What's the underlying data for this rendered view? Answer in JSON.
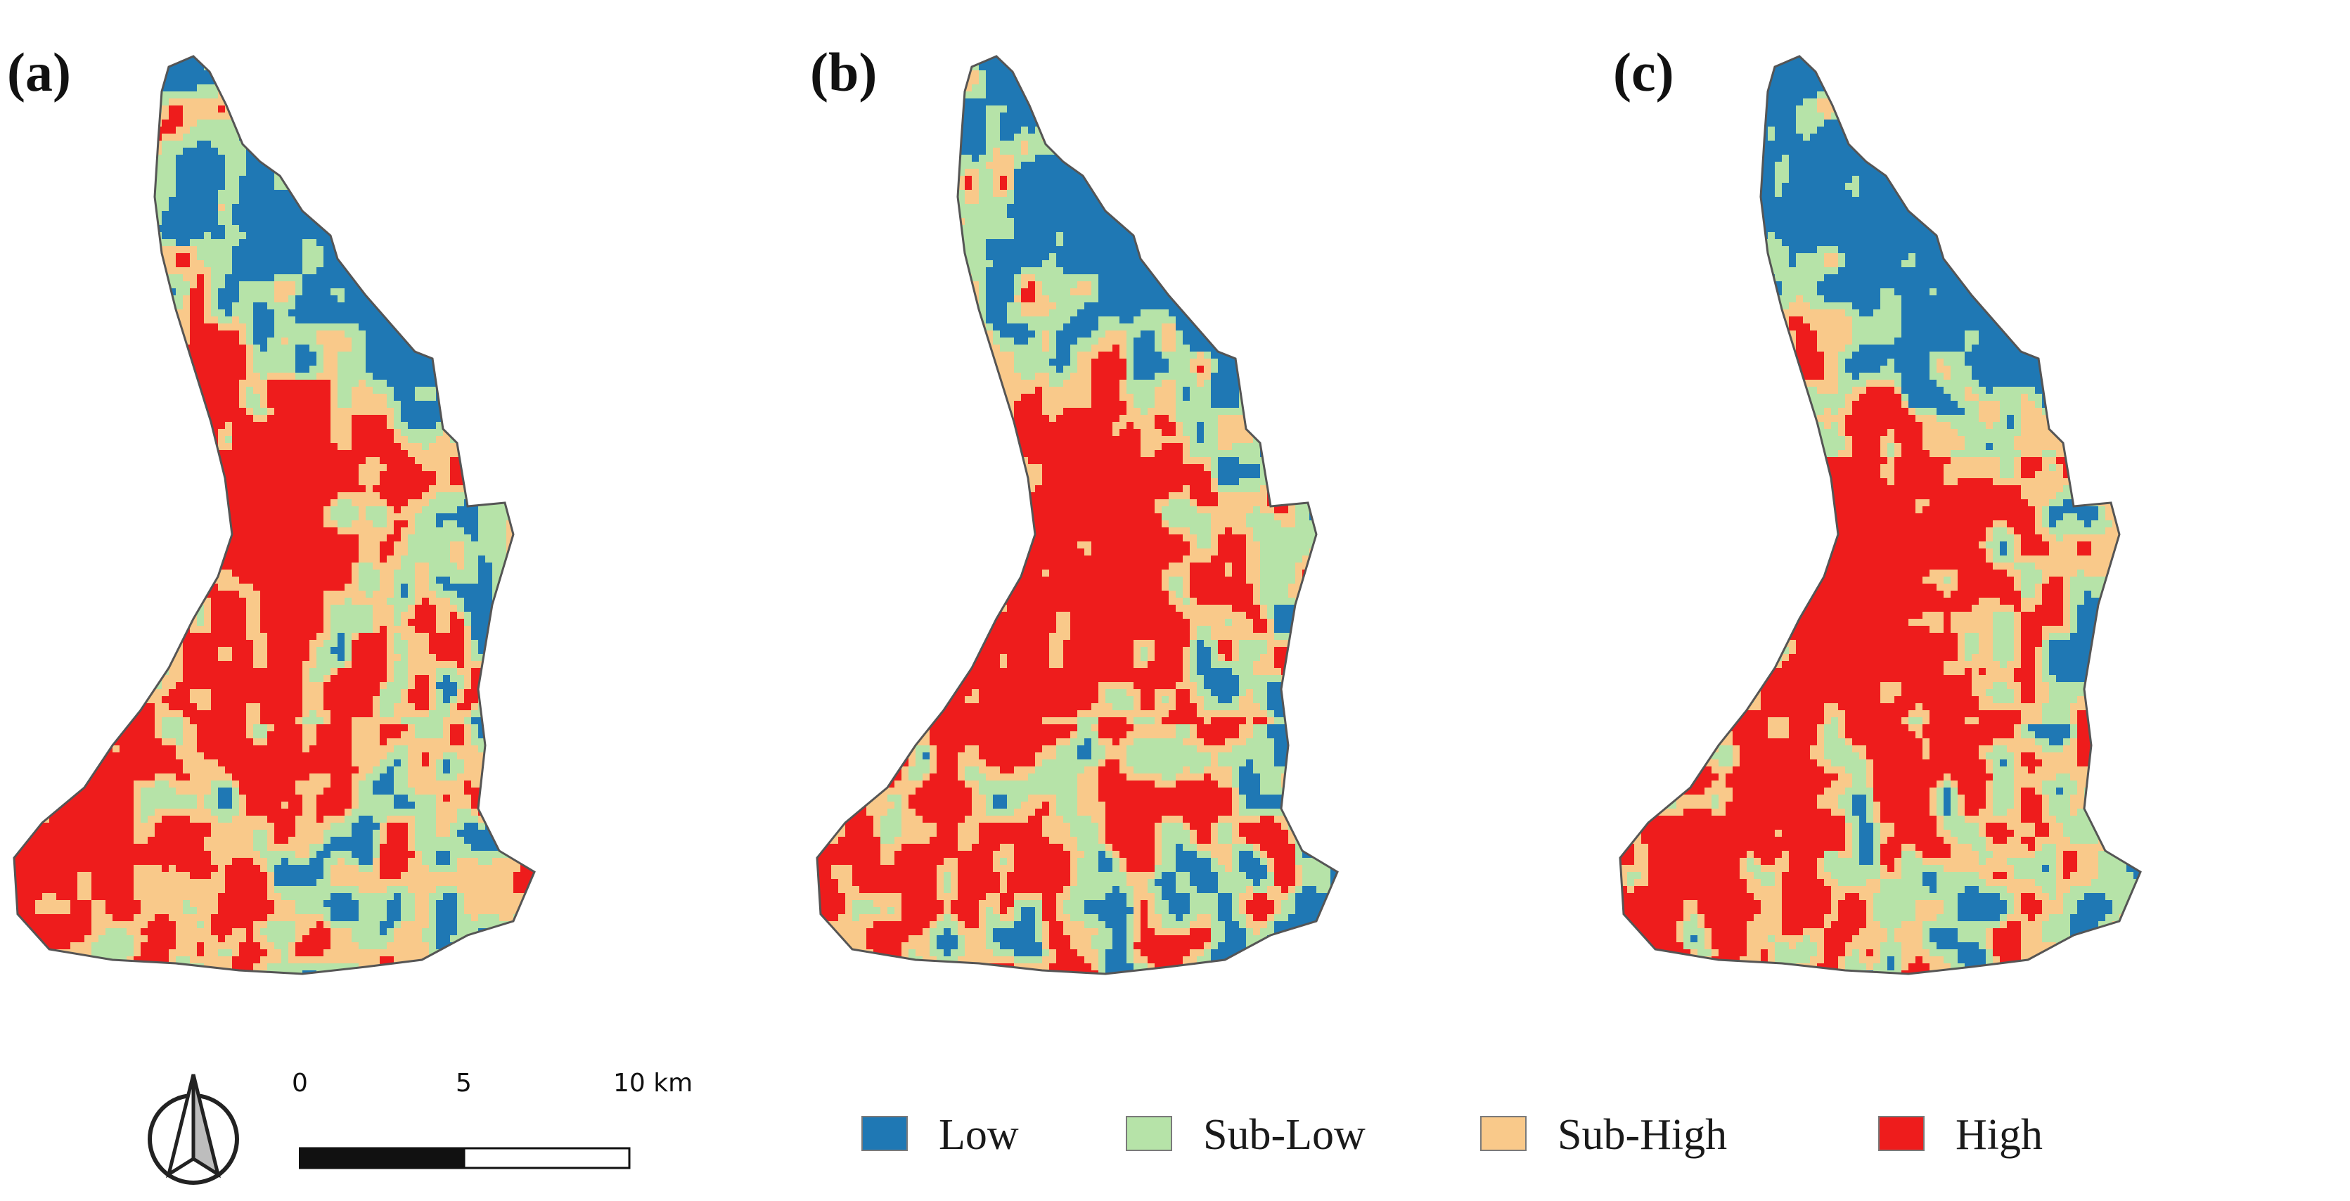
{
  "panels": [
    {
      "label": "(a)",
      "seed": 11,
      "shift": 0.0
    },
    {
      "label": "(b)",
      "seed": 23,
      "shift": 0.06
    },
    {
      "label": "(c)",
      "seed": 37,
      "shift": 0.12
    }
  ],
  "scale_bar": {
    "ticks": [
      "0",
      "5",
      "10 km"
    ],
    "compass": "north-arrow-icon"
  },
  "legend": {
    "items": [
      {
        "label": "Low",
        "color": "#1f78b4"
      },
      {
        "label": "Sub-Low",
        "color": "#b6e3a8"
      },
      {
        "label": "Sub-High",
        "color": "#f9c98a"
      },
      {
        "label": "High",
        "color": "#ee1c1c"
      }
    ]
  },
  "colors": {
    "low": "#1f78b4",
    "sub_low": "#b6e3a8",
    "sub_high": "#f9c98a",
    "high": "#ee1c1c",
    "outline": "#555555"
  }
}
